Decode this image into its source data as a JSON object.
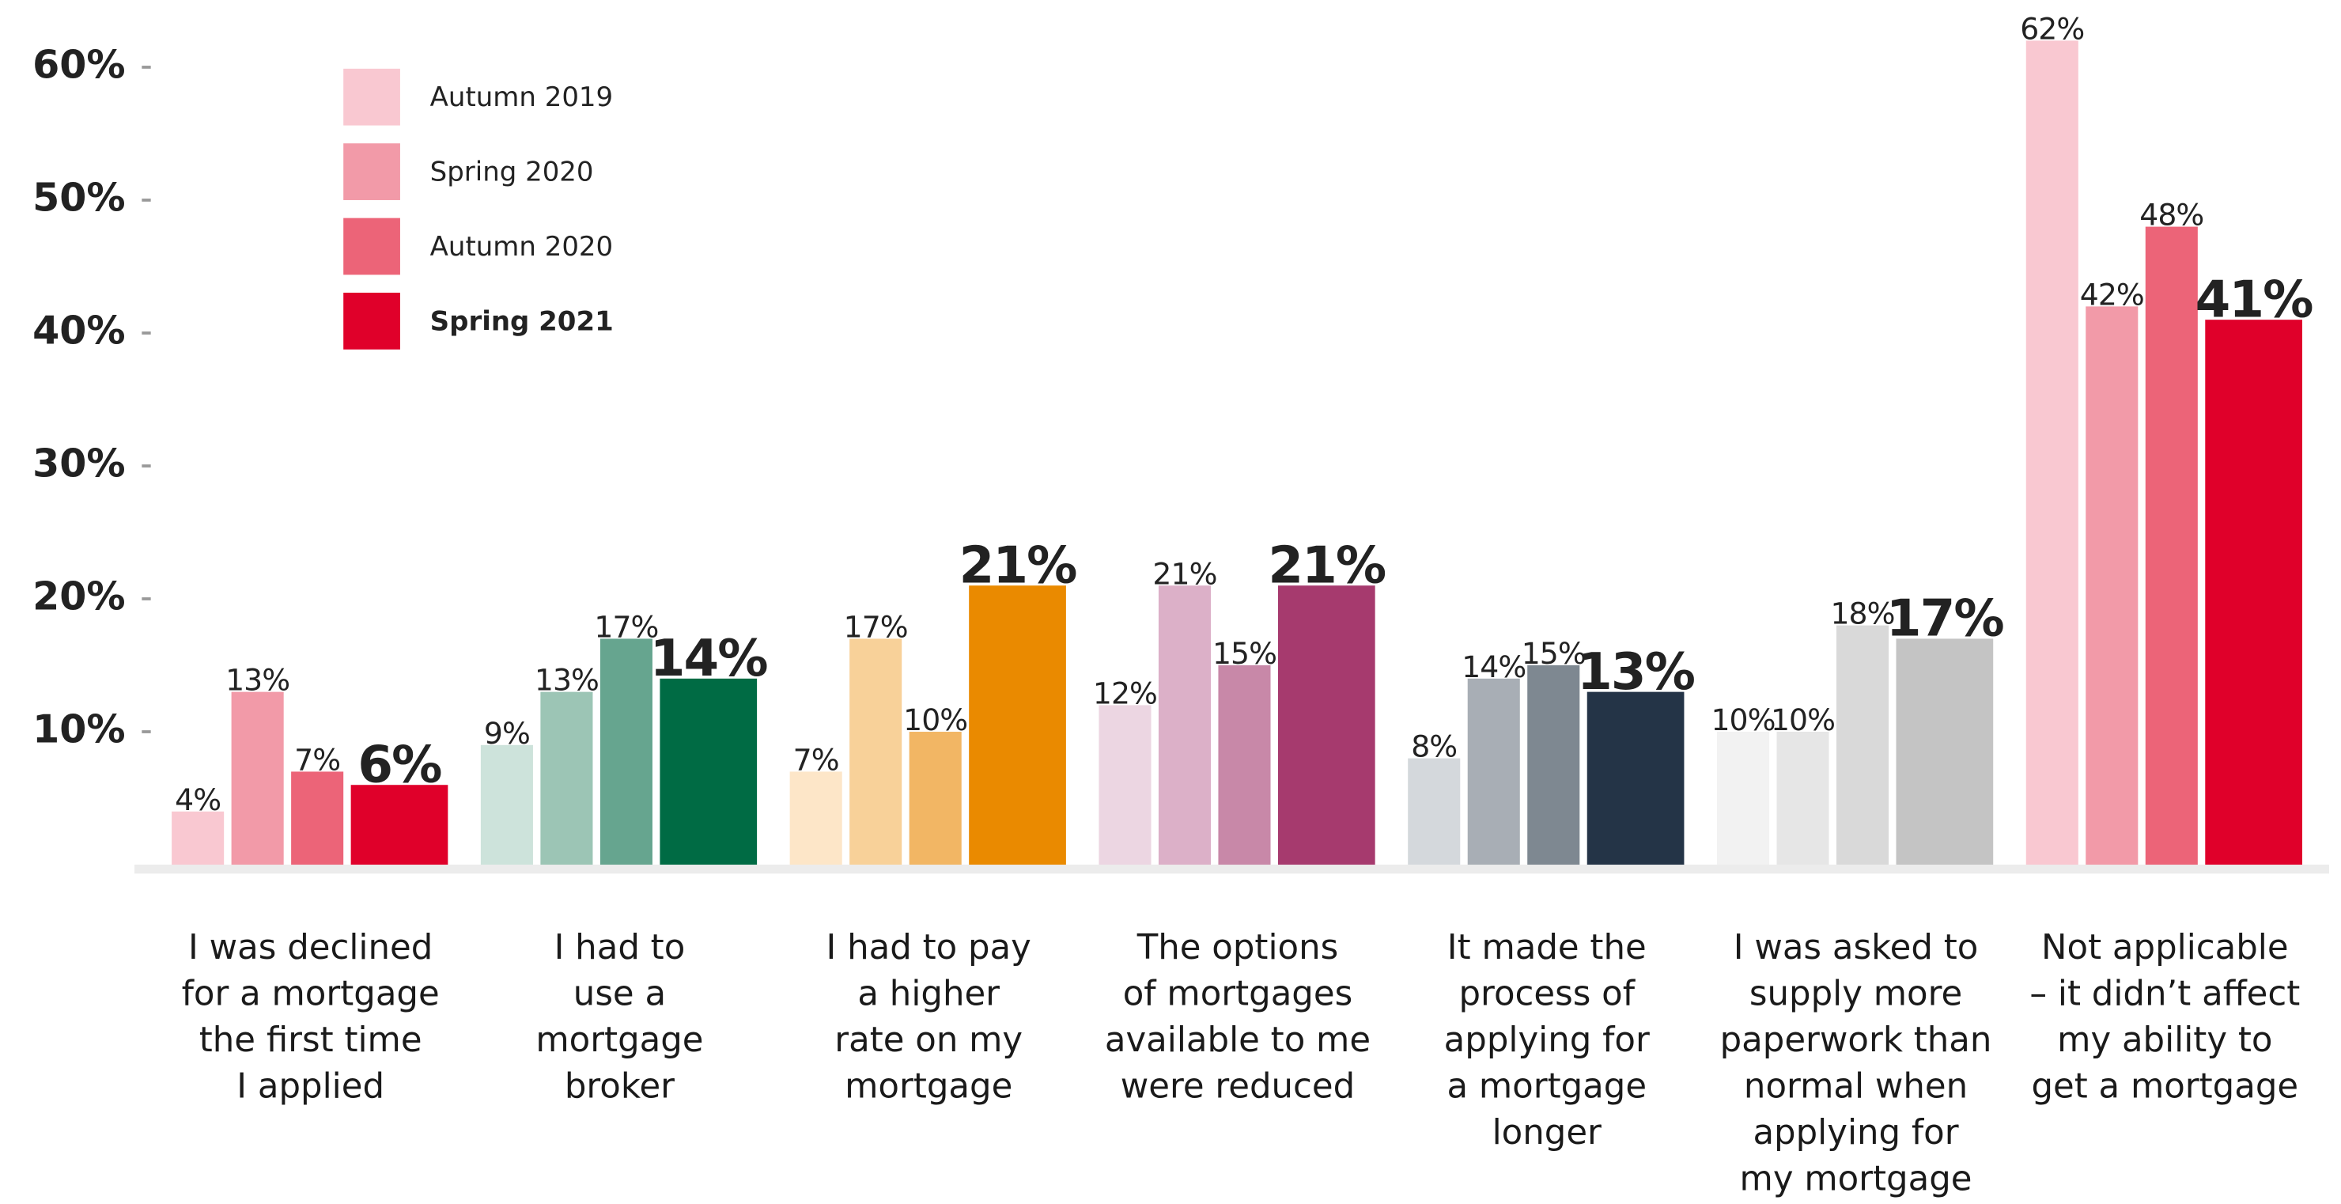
{
  "chart_data": {
    "type": "bar",
    "categories": [
      "I was declined\nfor a mortgage\nthe first time\nI applied",
      "I had to\nuse a\nmortgage\nbroker",
      "I had to pay\na higher\nrate on my\nmortgage",
      "The options\nof mortgages\navailable to me\nwere reduced",
      "It made the\nprocess of\napplying for\na mortgage\nlonger",
      "I was asked to\nsupply more\npaperwork than\nnormal when\napplying for\nmy mortgage",
      "Not applicable\n– it didn’t affect\nmy ability to\nget a mortgage"
    ],
    "series": [
      {
        "name": "Autumn 2019",
        "color": "#f9c8d1",
        "values": [
          4,
          9,
          7,
          12,
          8,
          10,
          62
        ],
        "value_labels": [
          "4%",
          "9%",
          "7%",
          "12%",
          "8%",
          "10%",
          "62%"
        ]
      },
      {
        "name": "Spring 2020",
        "color": "#f29aa8",
        "values": [
          13,
          13,
          17,
          21,
          14,
          10,
          42
        ],
        "value_labels": [
          "13%",
          "13%",
          "17%",
          "21%",
          "14%",
          "10%",
          "42%"
        ]
      },
      {
        "name": "Autumn 2020",
        "color": "#ec6478",
        "values": [
          7,
          17,
          10,
          15,
          15,
          18,
          48
        ],
        "value_labels": [
          "7%",
          "17%",
          "10%",
          "15%",
          "15%",
          "18%",
          "48%"
        ]
      },
      {
        "name": "Spring 2021",
        "color": "#e0002a",
        "values": [
          6,
          14,
          21,
          21,
          13,
          17,
          41
        ],
        "value_labels": [
          "6%",
          "14%",
          "21%",
          "21%",
          "13%",
          "17%",
          "41%"
        ]
      }
    ],
    "category_colors": [
      [
        "#f9c8d1",
        "#f29aa8",
        "#ec6478",
        "#e0002a"
      ],
      [
        "#cde3db",
        "#9cc5b5",
        "#66a58f",
        "#006b44"
      ],
      [
        "#fde6c8",
        "#f8d199",
        "#f2b664",
        "#ea8a00"
      ],
      [
        "#ecd6e2",
        "#dcb0c8",
        "#c888a8",
        "#a63a6e"
      ],
      [
        "#d4d8dc",
        "#a8aeb5",
        "#7e8891",
        "#243447"
      ],
      [
        "#f2f2f2",
        "#e6e6e6",
        "#d9d9d9",
        "#c4c4c4"
      ],
      [
        "#f9c8d1",
        "#f29aa8",
        "#ec6478",
        "#e0002a"
      ]
    ],
    "ylim": [
      0,
      60
    ],
    "yticks": [
      {
        "value": 10,
        "label": "10%"
      },
      {
        "value": 20,
        "label": "20%"
      },
      {
        "value": 30,
        "label": "30%"
      },
      {
        "value": 40,
        "label": "40%"
      },
      {
        "value": 50,
        "label": "50%"
      },
      {
        "value": 60,
        "label": "60%"
      }
    ],
    "legend": "top-left"
  }
}
